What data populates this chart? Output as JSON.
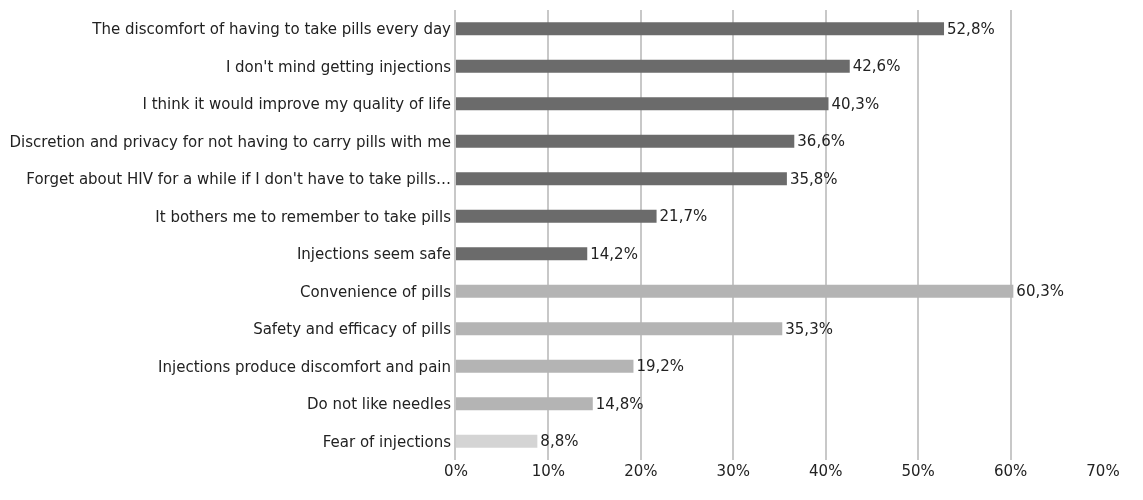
{
  "chart_data": {
    "type": "bar",
    "orientation": "horizontal",
    "categories": [
      "The discomfort of having to take pills every day",
      "I don't mind getting injections",
      "I think it would improve my quality of life",
      "Discretion and privacy for not having to carry pills with me",
      "Forget about HIV for a while if I don't have to take pills…",
      "It bothers me to remember to take pills",
      "Injections seem safe",
      "Convenience of pills",
      "Safety and efficacy of pills",
      "Injections produce discomfort and pain",
      "Do not like needles",
      "Fear of injections"
    ],
    "values": [
      52.8,
      42.6,
      40.3,
      36.6,
      35.8,
      21.7,
      14.2,
      60.3,
      35.3,
      19.2,
      14.8,
      8.8
    ],
    "value_labels": [
      "52,8%",
      "42,6%",
      "40,3%",
      "36,6%",
      "35,8%",
      "21,7%",
      "14,2%",
      "60,3%",
      "35,3%",
      "19,2%",
      "14,8%",
      "8,8%"
    ],
    "colors": [
      "#6b6b6b",
      "#6b6b6b",
      "#6b6b6b",
      "#6b6b6b",
      "#6b6b6b",
      "#6b6b6b",
      "#6b6b6b",
      "#b4b4b4",
      "#b4b4b4",
      "#b4b4b4",
      "#b4b4b4",
      "#d4d4d4"
    ],
    "xlim": [
      0,
      70
    ],
    "xticks": [
      {
        "value": 0,
        "label": "0%"
      },
      {
        "value": 10,
        "label": "10%"
      },
      {
        "value": 20,
        "label": "20%"
      },
      {
        "value": 30,
        "label": "30%"
      },
      {
        "value": 40,
        "label": "40%"
      },
      {
        "value": 50,
        "label": "50%"
      },
      {
        "value": 60,
        "label": "60%"
      },
      {
        "value": 70,
        "label": "70%"
      }
    ],
    "grid": "x"
  }
}
